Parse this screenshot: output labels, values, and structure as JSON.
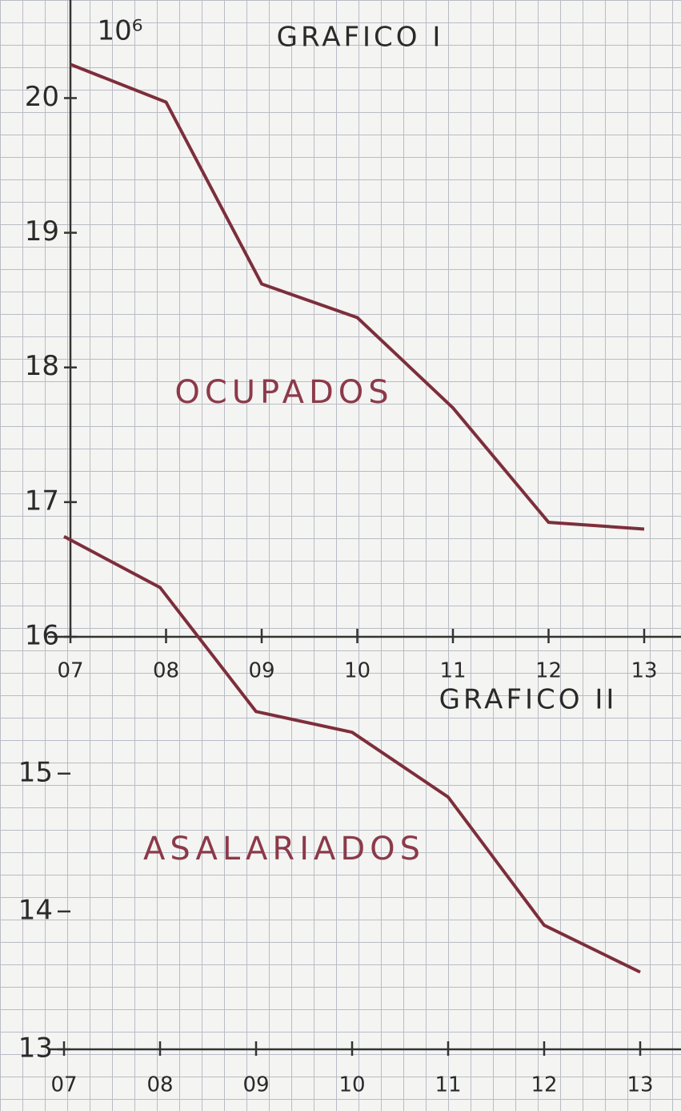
{
  "chart_data": [
    {
      "type": "line",
      "title": "GRAFICO I",
      "annotation": "10⁶",
      "categories": [
        "07",
        "08",
        "09",
        "10",
        "11",
        "12",
        "13"
      ],
      "series": [
        {
          "name": "OCUPADOS",
          "color": "#8b2a3a",
          "values": [
            20.25,
            19.97,
            18.62,
            18.37,
            17.7,
            16.85,
            16.8
          ]
        }
      ],
      "ylim": [
        16,
        20.3
      ],
      "yticks": [
        16,
        17,
        18,
        19,
        20
      ]
    },
    {
      "type": "line",
      "title": "GRAFICO II",
      "categories": [
        "07",
        "08",
        "09",
        "10",
        "11",
        "12",
        "13"
      ],
      "series": [
        {
          "name": "ASALARIADOS",
          "color": "#8b2a3a",
          "values": [
            16.72,
            16.35,
            15.45,
            15.3,
            14.83,
            13.9,
            13.56
          ]
        }
      ],
      "ylim": [
        13,
        16.8
      ],
      "yticks": [
        13,
        14,
        15
      ]
    }
  ]
}
